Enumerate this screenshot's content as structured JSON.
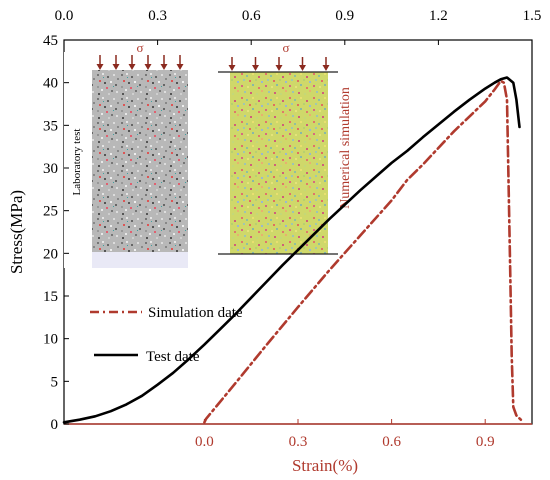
{
  "chart_data": {
    "type": "line",
    "ylabel": "Stress(MPa)",
    "ylim": [
      0,
      45
    ],
    "y_ticks": [
      "0",
      "5",
      "10",
      "15",
      "20",
      "25",
      "30",
      "35",
      "40",
      "45"
    ],
    "x_top": {
      "label": "",
      "lim": [
        0,
        1.5
      ],
      "ticks": [
        "0.0",
        "0.3",
        "0.6",
        "0.9",
        "1.2",
        "1.5"
      ]
    },
    "x_bottom": {
      "label": "Strain(%)",
      "lim": [
        -0.45,
        1.05
      ],
      "ticks": [
        "0.0",
        "0.3",
        "0.6",
        "0.9"
      ]
    },
    "series": [
      {
        "name": "Test date",
        "axis": "top",
        "color": "#000000",
        "style": "solid",
        "x": [
          0.0,
          0.05,
          0.1,
          0.15,
          0.2,
          0.25,
          0.3,
          0.35,
          0.4,
          0.45,
          0.5,
          0.55,
          0.6,
          0.65,
          0.7,
          0.75,
          0.8,
          0.85,
          0.9,
          0.95,
          1.0,
          1.05,
          1.1,
          1.15,
          1.2,
          1.25,
          1.3,
          1.35,
          1.38,
          1.4,
          1.42,
          1.44,
          1.45,
          1.46
        ],
        "y": [
          0.2,
          0.5,
          0.9,
          1.5,
          2.3,
          3.3,
          4.6,
          6.0,
          7.6,
          9.3,
          11.1,
          12.9,
          14.8,
          16.7,
          18.6,
          20.4,
          22.2,
          24.0,
          25.7,
          27.4,
          29.0,
          30.6,
          32.0,
          33.6,
          35.1,
          36.6,
          38.0,
          39.3,
          40.0,
          40.4,
          40.6,
          40.0,
          38.0,
          34.8
        ]
      },
      {
        "name": "Simulation date",
        "axis": "bottom",
        "color": "#b03a2e",
        "style": "dash-dot",
        "x": [
          0.0,
          0.005,
          0.1,
          0.2,
          0.3,
          0.4,
          0.5,
          0.6,
          0.65,
          0.7,
          0.8,
          0.9,
          0.93,
          0.95,
          0.96,
          0.97,
          0.975,
          0.98,
          0.985,
          0.99,
          1.0,
          1.02
        ],
        "y": [
          0.2,
          0.6,
          4.8,
          9.3,
          13.7,
          18.0,
          22.1,
          26.2,
          28.6,
          30.4,
          34.3,
          37.8,
          39.2,
          40.2,
          40.0,
          38.0,
          28.0,
          18.0,
          8.0,
          2.0,
          1.0,
          0.3
        ]
      }
    ],
    "legend": "left-middle",
    "grid": false
  },
  "inset": {
    "lab_label": "Laboratory test",
    "sim_label": "Numerical simulation",
    "sigma": "σ"
  }
}
